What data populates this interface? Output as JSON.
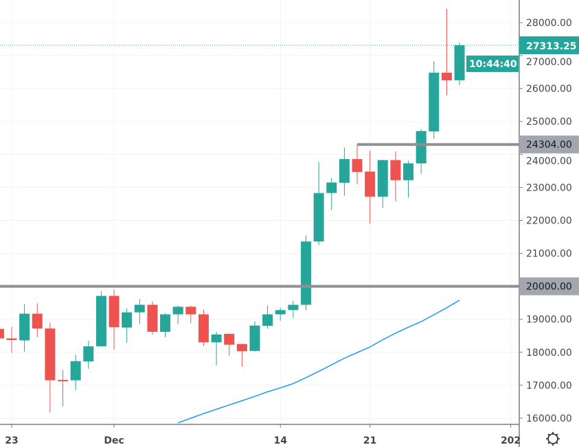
{
  "chart_data": {
    "type": "candlestick",
    "title": "",
    "xlabel": "",
    "ylabel": "",
    "ylim": [
      15800,
      28650
    ],
    "grid": true,
    "colors": {
      "up": "#26a69a",
      "down": "#ef5350",
      "moving_average": "#2196f3",
      "horizontal_line": "#8f8f94",
      "axis_label_bg": "#a3a6af",
      "last_price_bg": "#26a69a"
    },
    "y_ticks": [
      "16000.00",
      "17000.00",
      "18000.00",
      "19000.00",
      "20000.00",
      "21000.00",
      "22000.00",
      "23000.00",
      "24000.00",
      "25000.00",
      "26000.00",
      "27000.00",
      "28000.00"
    ],
    "x_ticks": [
      {
        "date": "2020-11-23",
        "label": "23"
      },
      {
        "date": "2020-12-01",
        "label": "Dec"
      },
      {
        "date": "2020-12-14",
        "label": "14"
      },
      {
        "date": "2020-12-21",
        "label": "21"
      },
      {
        "date": "2021-01-01",
        "label": "202"
      }
    ],
    "candles": [
      {
        "date": "2020-11-22",
        "o": 18710,
        "h": 18800,
        "l": 18400,
        "c": 18420
      },
      {
        "date": "2020-11-23",
        "o": 18420,
        "h": 18770,
        "l": 17980,
        "c": 18370
      },
      {
        "date": "2020-11-24",
        "o": 18360,
        "h": 19460,
        "l": 18020,
        "c": 19170
      },
      {
        "date": "2020-11-25",
        "o": 19170,
        "h": 19480,
        "l": 18460,
        "c": 18720
      },
      {
        "date": "2020-11-26",
        "o": 18720,
        "h": 18900,
        "l": 16170,
        "c": 17150
      },
      {
        "date": "2020-11-27",
        "o": 17160,
        "h": 17460,
        "l": 16360,
        "c": 17140
      },
      {
        "date": "2020-11-28",
        "o": 17150,
        "h": 17920,
        "l": 16850,
        "c": 17730
      },
      {
        "date": "2020-11-29",
        "o": 17720,
        "h": 18350,
        "l": 17500,
        "c": 18180
      },
      {
        "date": "2020-11-30",
        "o": 18180,
        "h": 19860,
        "l": 18180,
        "c": 19710
      },
      {
        "date": "2020-12-01",
        "o": 19710,
        "h": 19900,
        "l": 18080,
        "c": 18760
      },
      {
        "date": "2020-12-02",
        "o": 18750,
        "h": 19330,
        "l": 18290,
        "c": 19210
      },
      {
        "date": "2020-12-03",
        "o": 19210,
        "h": 19620,
        "l": 18850,
        "c": 19440
      },
      {
        "date": "2020-12-04",
        "o": 19440,
        "h": 19540,
        "l": 18540,
        "c": 18620
      },
      {
        "date": "2020-12-05",
        "o": 18620,
        "h": 19190,
        "l": 18460,
        "c": 19150
      },
      {
        "date": "2020-12-06",
        "o": 19150,
        "h": 19420,
        "l": 18850,
        "c": 19380
      },
      {
        "date": "2020-12-07",
        "o": 19380,
        "h": 19420,
        "l": 18880,
        "c": 19150
      },
      {
        "date": "2020-12-08",
        "o": 19150,
        "h": 19290,
        "l": 18190,
        "c": 18300
      },
      {
        "date": "2020-12-09",
        "o": 18300,
        "h": 18620,
        "l": 17600,
        "c": 18540
      },
      {
        "date": "2020-12-10",
        "o": 18560,
        "h": 18560,
        "l": 17900,
        "c": 18230
      },
      {
        "date": "2020-12-11",
        "o": 18250,
        "h": 18260,
        "l": 17560,
        "c": 18030
      },
      {
        "date": "2020-12-12",
        "o": 18040,
        "h": 18940,
        "l": 18020,
        "c": 18810
      },
      {
        "date": "2020-12-13",
        "o": 18800,
        "h": 19420,
        "l": 18710,
        "c": 19150
      },
      {
        "date": "2020-12-14",
        "o": 19150,
        "h": 19350,
        "l": 18960,
        "c": 19280
      },
      {
        "date": "2020-12-15",
        "o": 19280,
        "h": 19560,
        "l": 19040,
        "c": 19440
      },
      {
        "date": "2020-12-16",
        "o": 19440,
        "h": 21540,
        "l": 19270,
        "c": 21360
      },
      {
        "date": "2020-12-17",
        "o": 21360,
        "h": 23770,
        "l": 21250,
        "c": 22830
      },
      {
        "date": "2020-12-18",
        "o": 22830,
        "h": 23290,
        "l": 22310,
        "c": 23150
      },
      {
        "date": "2020-12-19",
        "o": 23140,
        "h": 24210,
        "l": 22750,
        "c": 23860
      },
      {
        "date": "2020-12-20",
        "o": 23860,
        "h": 24304,
        "l": 23100,
        "c": 23470
      },
      {
        "date": "2020-12-21",
        "o": 23480,
        "h": 24120,
        "l": 21900,
        "c": 22720
      },
      {
        "date": "2020-12-22",
        "o": 22720,
        "h": 23840,
        "l": 22380,
        "c": 23830
      },
      {
        "date": "2020-12-23",
        "o": 23830,
        "h": 24100,
        "l": 22580,
        "c": 23220
      },
      {
        "date": "2020-12-24",
        "o": 23220,
        "h": 23810,
        "l": 22690,
        "c": 23730
      },
      {
        "date": "2020-12-25",
        "o": 23730,
        "h": 24770,
        "l": 23420,
        "c": 24710
      },
      {
        "date": "2020-12-26",
        "o": 24700,
        "h": 26830,
        "l": 24480,
        "c": 26480
      },
      {
        "date": "2020-12-27",
        "o": 26480,
        "h": 28420,
        "l": 25790,
        "c": 26250
      },
      {
        "date": "2020-12-28",
        "o": 26250,
        "h": 27400,
        "l": 26100,
        "c": 27313.25
      }
    ],
    "moving_average": {
      "start_date": "2020-12-06",
      "values": [
        15860,
        16000,
        16140,
        16270,
        16400,
        16530,
        16660,
        16800,
        16920,
        17050,
        17230,
        17420,
        17620,
        17820,
        17990,
        18160,
        18380,
        18580,
        18760,
        18930,
        19140,
        19350,
        19580
      ]
    },
    "horizontal_lines": [
      {
        "price": 20000,
        "label": "20000.00",
        "from_date": null
      },
      {
        "price": 24304,
        "label": "24304.00",
        "from_date": "2020-12-20"
      }
    ],
    "last_price": {
      "value": 27313.25,
      "label": "27313.25",
      "countdown": "10:44:40"
    }
  },
  "footer": {
    "settings_icon": "gear-icon"
  }
}
